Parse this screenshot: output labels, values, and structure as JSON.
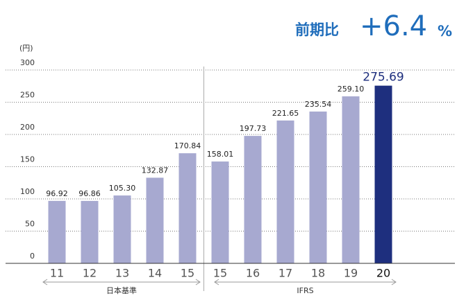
{
  "chart_data": {
    "type": "bar",
    "annotation": {
      "label": "前期比",
      "value": "+6.4",
      "unit": "%"
    },
    "ylabel": "(円)",
    "categories": [
      "11",
      "12",
      "13",
      "14",
      "15",
      "15",
      "16",
      "17",
      "18",
      "19",
      "20"
    ],
    "values": [
      96.92,
      96.86,
      105.3,
      132.87,
      170.84,
      158.01,
      197.73,
      221.65,
      235.54,
      259.1,
      275.69
    ],
    "value_labels": [
      "96.92",
      "96.86",
      "105.30",
      "132.87",
      "170.84",
      "158.01",
      "197.73",
      "221.65",
      "235.54",
      "259.10",
      "275.69"
    ],
    "colors": [
      "#a7a9d0",
      "#a7a9d0",
      "#a7a9d0",
      "#a7a9d0",
      "#a7a9d0",
      "#a7a9d0",
      "#a7a9d0",
      "#a7a9d0",
      "#a7a9d0",
      "#a7a9d0",
      "#1e2f7e"
    ],
    "groups": [
      {
        "label": "日本基準",
        "count": 5
      },
      {
        "label": "IFRS",
        "count": 6
      }
    ],
    "ylim": [
      0,
      300
    ],
    "yticks": [
      0,
      50,
      100,
      150,
      200,
      250,
      300
    ],
    "grid": true
  }
}
